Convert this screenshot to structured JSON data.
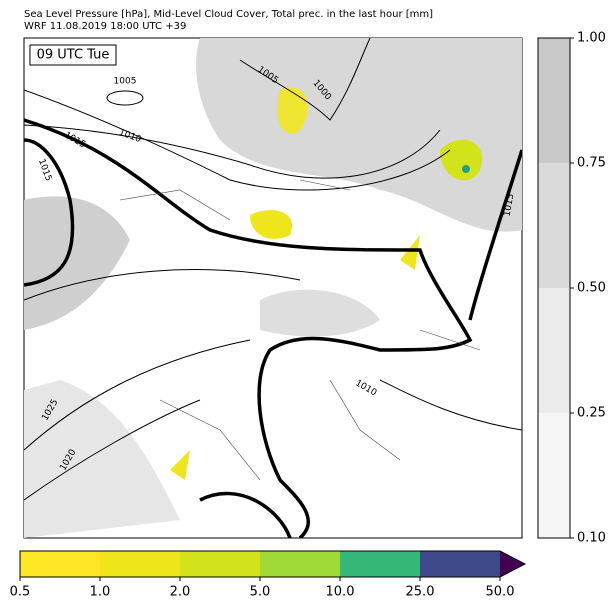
{
  "header": {
    "title_lines": [
      "Sea Level Pressure [hPa], Mid-Level Cloud Cover, Total prec. in the last hour [mm]",
      "WRF 11.08.2019 18:00 UTC +39"
    ]
  },
  "map": {
    "time_label": "09 UTC Tue",
    "contour_labels": [
      "1005",
      "1005",
      "1000",
      "1010",
      "1015",
      "1015",
      "1015",
      "1010",
      "1025",
      "1020"
    ]
  },
  "cloud_colorbar": {
    "ticks": [
      "1.00",
      "0.75",
      "0.50",
      "0.25",
      "0.10"
    ],
    "colors": [
      "#c8c8c8",
      "#dadada",
      "#ebebeb",
      "#f6f6f6"
    ]
  },
  "precip_colorbar": {
    "ticks": [
      "0.5",
      "1.0",
      "2.0",
      "5.0",
      "10.0",
      "25.0",
      "50.0"
    ],
    "colors": [
      "#fde725",
      "#eee51b",
      "#d2e21b",
      "#a0da39",
      "#35b779",
      "#3e4a89",
      "#440154"
    ]
  }
}
